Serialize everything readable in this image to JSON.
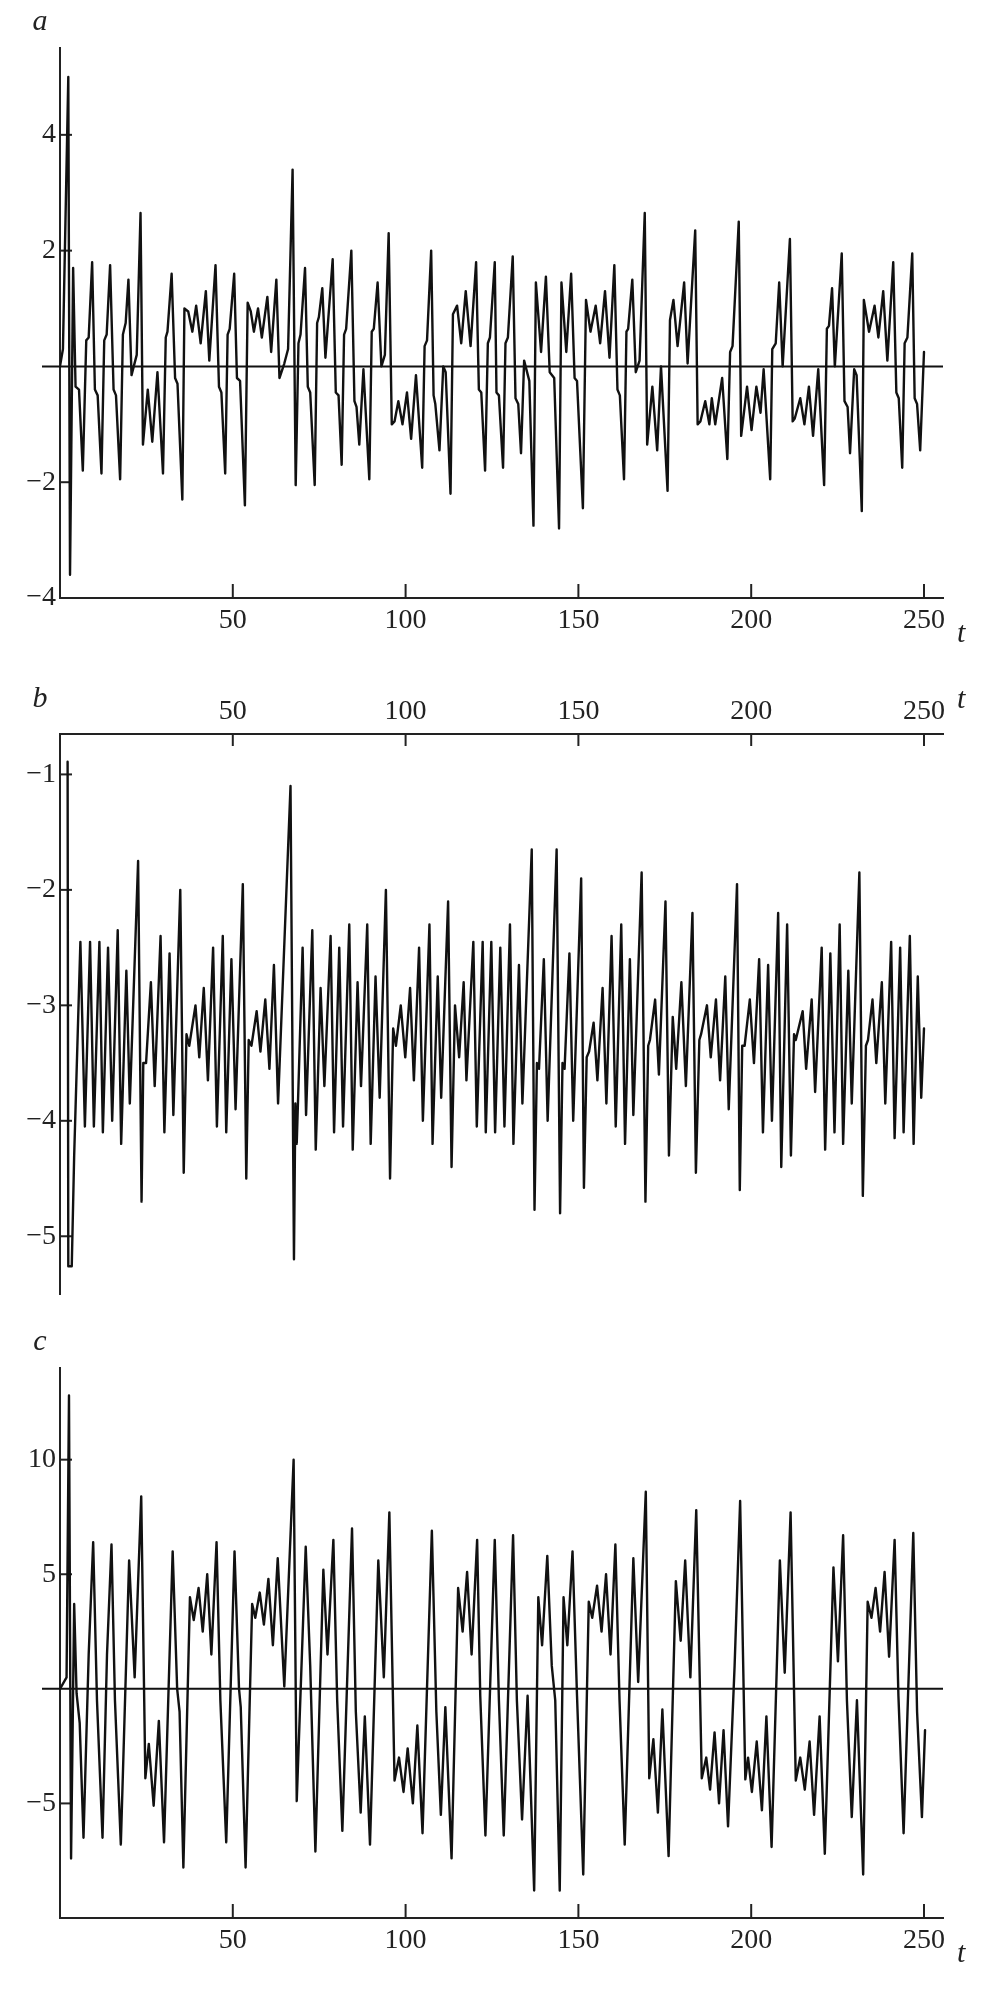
{
  "chart_data": [
    {
      "type": "line",
      "title": "a",
      "xlabel": "t",
      "color": "#111111",
      "xlim": [
        0,
        255.5
      ],
      "xticks": [
        50,
        100,
        150,
        200,
        250
      ],
      "ylim": [
        -4,
        5.5
      ],
      "yticks": [
        {
          "value": -4,
          "label": "−4"
        },
        {
          "value": -2,
          "label": "−2"
        },
        2,
        4
      ],
      "ref_lines": [
        {
          "axis": "y",
          "value": 0,
          "color": "#111111"
        }
      ],
      "x": [
        0,
        0.85,
        2.4,
        2.9,
        3.8,
        4.5,
        5.5,
        6.6,
        7.6,
        8.3,
        9.3,
        10.1,
        10.9,
        12.0,
        12.8,
        13.5,
        14.5,
        15.5,
        16.2,
        17.4,
        18.2,
        19.0,
        19.8,
        20.7,
        22.2,
        23.3,
        24.0,
        25.4,
        26.7,
        28.2,
        29.8,
        30.6,
        31.1,
        32.3,
        33.3,
        34.0,
        35.4,
        36.0,
        37.1,
        38.3,
        39.4,
        40.7,
        42.2,
        43.2,
        45.0,
        46.0,
        46.7,
        47.8,
        48.5,
        49.1,
        50.4,
        51.2,
        52.1,
        53.5,
        54.3,
        55.2,
        56.1,
        57.3,
        58.4,
        60.0,
        61.1,
        62.6,
        63.5,
        64.9,
        66.0,
        67.3,
        68.2,
        69.0,
        69.6,
        70.9,
        71.7,
        72.4,
        73.7,
        74.4,
        74.9,
        75.9,
        76.8,
        78.9,
        79.8,
        80.6,
        81.5,
        82.2,
        82.8,
        84.3,
        85.2,
        85.8,
        86.6,
        87.8,
        89.5,
        90.2,
        90.8,
        91.9,
        93.0,
        94.0,
        95.1,
        96.0,
        96.8,
        97.9,
        99.1,
        100.4,
        101.6,
        103.0,
        104.8,
        105.5,
        106.2,
        107.4,
        108.1,
        108.6,
        109.8,
        110.9,
        111.6,
        113.0,
        113.7,
        114.9,
        116.1,
        117.4,
        118.8,
        120.4,
        121.2,
        121.9,
        123.0,
        123.8,
        124.4,
        125.8,
        126.3,
        127.0,
        128.2,
        128.9,
        129.6,
        131.0,
        131.8,
        132.6,
        133.4,
        134.3,
        135.8,
        137.0,
        137.7,
        139.2,
        140.6,
        141.7,
        143.0,
        144.4,
        145.1,
        146.5,
        147.9,
        148.9,
        149.6,
        151.3,
        152.2,
        153.5,
        155.0,
        156.3,
        157.7,
        159.0,
        160.4,
        161.3,
        162.0,
        163.2,
        163.9,
        164.4,
        165.6,
        166.6,
        167.7,
        169.2,
        169.9,
        171.4,
        172.8,
        173.9,
        175.8,
        176.5,
        177.5,
        178.7,
        180.6,
        181.6,
        183.8,
        184.5,
        185.3,
        186.7,
        187.9,
        188.6,
        189.6,
        191.6,
        193.1,
        193.9,
        194.6,
        196.4,
        197.1,
        198.8,
        200.1,
        201.5,
        202.7,
        203.6,
        205.5,
        206.1,
        207.1,
        208.1,
        209.1,
        211.2,
        212.0,
        212.6,
        214.2,
        215.4,
        216.7,
        217.9,
        219.4,
        221.1,
        221.9,
        222.5,
        223.4,
        224.2,
        226.2,
        227.0,
        227.9,
        228.6,
        229.8,
        230.5,
        232.0,
        232.6,
        234.1,
        235.7,
        236.8,
        238.2,
        239.4,
        241.1,
        242.0,
        242.7,
        243.7,
        244.4,
        245.2,
        246.6,
        247.3,
        248.0,
        248.9,
        250.0
      ],
      "values": [
        0,
        0.3,
        5.0,
        -3.6,
        1.7,
        -0.35,
        -0.4,
        -1.8,
        0.45,
        0.5,
        1.8,
        -0.4,
        -0.5,
        -1.85,
        0.45,
        0.55,
        1.75,
        -0.4,
        -0.5,
        -1.95,
        0.55,
        0.75,
        1.5,
        -0.15,
        0.2,
        2.65,
        -1.35,
        -0.4,
        -1.3,
        -0.1,
        -1.85,
        0.5,
        0.6,
        1.6,
        -0.2,
        -0.3,
        -2.3,
        1.0,
        0.95,
        0.6,
        1.05,
        0.4,
        1.3,
        0.1,
        1.75,
        -0.35,
        -0.45,
        -1.85,
        0.55,
        0.65,
        1.6,
        -0.2,
        -0.25,
        -2.4,
        1.1,
        0.95,
        0.6,
        1.0,
        0.5,
        1.2,
        0.25,
        1.5,
        -0.2,
        0.05,
        0.3,
        3.4,
        -2.05,
        0.4,
        0.55,
        1.7,
        -0.35,
        -0.45,
        -2.05,
        0.75,
        0.85,
        1.35,
        0.15,
        1.85,
        -0.45,
        -0.5,
        -1.7,
        0.55,
        0.65,
        2.0,
        -0.6,
        -0.7,
        -1.35,
        -0.05,
        -1.95,
        0.6,
        0.65,
        1.45,
        0.0,
        0.2,
        2.3,
        -1.0,
        -0.95,
        -0.6,
        -1.0,
        -0.45,
        -1.25,
        -0.15,
        -1.75,
        0.35,
        0.45,
        2.0,
        -0.5,
        -0.65,
        -1.45,
        0.0,
        -0.1,
        -2.2,
        0.9,
        1.05,
        0.4,
        1.3,
        0.35,
        1.8,
        -0.4,
        -0.45,
        -1.8,
        0.4,
        0.5,
        1.8,
        -0.45,
        -0.5,
        -1.75,
        0.4,
        0.5,
        1.9,
        -0.55,
        -0.65,
        -1.5,
        0.1,
        -0.25,
        -2.75,
        1.45,
        0.25,
        1.55,
        -0.1,
        -0.2,
        -2.8,
        1.45,
        0.25,
        1.6,
        -0.2,
        -0.25,
        -2.45,
        1.15,
        0.6,
        1.05,
        0.4,
        1.3,
        0.15,
        1.75,
        -0.4,
        -0.5,
        -1.95,
        0.6,
        0.65,
        1.5,
        -0.1,
        0.1,
        2.65,
        -1.35,
        -0.35,
        -1.45,
        0.0,
        -2.15,
        0.8,
        1.15,
        0.35,
        1.45,
        0.05,
        2.35,
        -1.0,
        -0.95,
        -0.6,
        -1.0,
        -0.55,
        -1.0,
        -0.2,
        -1.6,
        0.25,
        0.35,
        2.5,
        -1.2,
        -0.35,
        -1.1,
        -0.35,
        -0.8,
        -0.05,
        -1.95,
        0.3,
        0.4,
        1.45,
        0.0,
        2.2,
        -0.95,
        -0.9,
        -0.55,
        -1.0,
        -0.35,
        -1.2,
        -0.05,
        -2.05,
        0.65,
        0.7,
        1.35,
        0.0,
        1.95,
        -0.6,
        -0.7,
        -1.5,
        -0.05,
        -0.15,
        -2.5,
        1.15,
        0.6,
        1.05,
        0.5,
        1.3,
        0.1,
        1.8,
        -0.45,
        -0.55,
        -1.75,
        0.4,
        0.5,
        1.95,
        -0.55,
        -0.65,
        -1.45,
        0.25
      ]
    },
    {
      "type": "line",
      "title": "b",
      "xlabel": "t",
      "color": "#111111",
      "xlim": [
        0,
        255.5
      ],
      "xticks": [
        50,
        100,
        150,
        200,
        250
      ],
      "ylim": [
        -5.5,
        -0.65
      ],
      "yticks": [
        {
          "value": -5,
          "label": "−5"
        },
        {
          "value": -4,
          "label": "−4"
        },
        {
          "value": -3,
          "label": "−3"
        },
        {
          "value": -2,
          "label": "−2"
        },
        {
          "value": -1,
          "label": "−1"
        }
      ],
      "x": [
        2.2,
        2.4,
        3.4,
        4.1,
        5.9,
        7.2,
        8.7,
        9.8,
        11.4,
        12.4,
        13.9,
        15.1,
        16.7,
        17.7,
        19.2,
        20.2,
        22.6,
        23.6,
        24.1,
        24.9,
        26.3,
        27.4,
        29.1,
        30.2,
        31.7,
        32.8,
        34.8,
        35.8,
        36.6,
        37.4,
        39.2,
        40.3,
        41.6,
        42.8,
        44.3,
        45.4,
        47.1,
        48.1,
        49.6,
        50.8,
        52.9,
        53.9,
        54.6,
        55.4,
        56.9,
        58.0,
        59.4,
        60.6,
        61.9,
        63.1,
        66.7,
        67.7,
        68.1,
        68.5,
        70.2,
        71.2,
        73.0,
        74.0,
        75.4,
        76.5,
        78.3,
        79.3,
        80.8,
        81.9,
        83.7,
        84.7,
        86.1,
        87.1,
        88.9,
        89.9,
        91.3,
        92.5,
        94.3,
        95.5,
        96.4,
        97.2,
        98.6,
        99.9,
        101.3,
        102.4,
        103.9,
        105.0,
        106.9,
        107.8,
        109.3,
        110.3,
        112.3,
        113.3,
        114.3,
        115.5,
        116.8,
        117.6,
        119.6,
        120.6,
        122.3,
        123.2,
        124.8,
        125.9,
        127.4,
        128.6,
        130.2,
        131.2,
        132.8,
        133.8,
        136.5,
        137.3,
        138.0,
        138.6,
        140.0,
        141.1,
        143.7,
        144.7,
        145.4,
        146.0,
        147.4,
        148.5,
        150.8,
        151.6,
        152.4,
        153.1,
        154.4,
        155.5,
        157.0,
        158.1,
        159.6,
        160.8,
        162.4,
        163.5,
        164.9,
        165.9,
        168.3,
        169.4,
        170.2,
        170.7,
        172.2,
        173.3,
        175.2,
        176.2,
        177.3,
        178.3,
        179.8,
        181.1,
        183.0,
        184.0,
        185.0,
        185.5,
        187.2,
        188.3,
        189.8,
        191.0,
        192.5,
        193.5,
        195.9,
        196.7,
        197.4,
        198.1,
        199.6,
        200.8,
        202.3,
        203.4,
        204.9,
        206.0,
        207.8,
        208.7,
        210.4,
        211.5,
        212.4,
        212.9,
        214.9,
        215.9,
        217.5,
        218.5,
        220.4,
        221.4,
        222.9,
        224.1,
        225.6,
        226.6,
        228.1,
        229.1,
        231.3,
        232.3,
        233.2,
        233.8,
        235.1,
        236.2,
        237.8,
        238.8,
        240.5,
        241.5,
        243.1,
        244.1,
        245.9,
        247.0,
        248.2,
        249.2,
        250.0
      ],
      "values": [
        -0.89,
        -5.26,
        -5.26,
        -4.3,
        -2.45,
        -4.05,
        -2.45,
        -4.05,
        -2.45,
        -4.1,
        -2.5,
        -4.0,
        -2.35,
        -4.2,
        -2.7,
        -3.85,
        -1.75,
        -4.7,
        -3.5,
        -3.5,
        -2.8,
        -3.7,
        -2.4,
        -4.1,
        -2.55,
        -3.95,
        -2.0,
        -4.45,
        -3.25,
        -3.35,
        -3.0,
        -3.45,
        -2.85,
        -3.65,
        -2.5,
        -4.05,
        -2.4,
        -4.1,
        -2.6,
        -3.9,
        -1.95,
        -4.5,
        -3.3,
        -3.35,
        -3.05,
        -3.4,
        -2.95,
        -3.55,
        -2.65,
        -3.85,
        -1.1,
        -5.2,
        -3.85,
        -4.2,
        -2.5,
        -3.95,
        -2.35,
        -4.25,
        -2.85,
        -3.7,
        -2.4,
        -4.1,
        -2.5,
        -4.05,
        -2.3,
        -4.25,
        -2.8,
        -3.7,
        -2.3,
        -4.2,
        -2.75,
        -3.8,
        -2.0,
        -4.5,
        -3.2,
        -3.35,
        -3.0,
        -3.45,
        -2.85,
        -3.65,
        -2.5,
        -4.0,
        -2.3,
        -4.2,
        -2.75,
        -3.8,
        -2.1,
        -4.4,
        -3.0,
        -3.45,
        -2.8,
        -3.65,
        -2.45,
        -4.05,
        -2.45,
        -4.1,
        -2.45,
        -4.1,
        -2.5,
        -4.05,
        -2.3,
        -4.2,
        -2.65,
        -3.85,
        -1.65,
        -4.77,
        -3.5,
        -3.55,
        -2.6,
        -4.0,
        -1.65,
        -4.8,
        -3.5,
        -3.55,
        -2.55,
        -4.0,
        -1.9,
        -4.58,
        -3.45,
        -3.4,
        -3.15,
        -3.65,
        -2.85,
        -3.85,
        -2.4,
        -4.05,
        -2.3,
        -4.2,
        -2.6,
        -3.95,
        -1.85,
        -4.7,
        -3.35,
        -3.3,
        -2.95,
        -3.6,
        -2.1,
        -4.3,
        -3.1,
        -3.55,
        -2.8,
        -3.7,
        -2.2,
        -4.45,
        -3.3,
        -3.25,
        -3.0,
        -3.45,
        -2.95,
        -3.65,
        -2.75,
        -3.9,
        -1.95,
        -4.6,
        -3.35,
        -3.35,
        -2.95,
        -3.5,
        -2.6,
        -4.1,
        -2.65,
        -4.0,
        -2.2,
        -4.4,
        -2.3,
        -4.3,
        -3.25,
        -3.3,
        -3.05,
        -3.55,
        -2.95,
        -3.75,
        -2.5,
        -4.25,
        -2.55,
        -4.1,
        -2.3,
        -4.2,
        -2.7,
        -3.85,
        -1.85,
        -4.65,
        -3.35,
        -3.3,
        -2.95,
        -3.5,
        -2.8,
        -3.85,
        -2.45,
        -4.15,
        -2.5,
        -4.1,
        -2.4,
        -4.2,
        -2.75,
        -3.8,
        -3.2
      ]
    },
    {
      "type": "line",
      "title": "c",
      "xlabel": "t",
      "color": "#111111",
      "xlim": [
        0,
        255.5
      ],
      "xticks": [
        50,
        100,
        150,
        200,
        250
      ],
      "ylim": [
        -10,
        14
      ],
      "yticks": [
        {
          "value": -5,
          "label": "−5"
        },
        5,
        10
      ],
      "ref_lines": [
        {
          "axis": "y",
          "value": 0,
          "color": "#111111"
        }
      ],
      "x": [
        0,
        1.9,
        2.6,
        3.2,
        4.1,
        4.8,
        5.7,
        6.8,
        8.3,
        9.6,
        10.7,
        12.3,
        13.6,
        14.9,
        15.9,
        17.6,
        20.0,
        21.6,
        23.5,
        24.7,
        25.7,
        27.1,
        28.6,
        30.1,
        32.6,
        33.9,
        34.6,
        35.7,
        37.6,
        38.7,
        40.1,
        41.3,
        42.6,
        43.8,
        45.3,
        46.4,
        48.1,
        50.5,
        51.8,
        52.3,
        53.7,
        55.6,
        56.5,
        57.8,
        59.0,
        60.3,
        61.6,
        63.0,
        64.9,
        67.6,
        68.5,
        71.1,
        72.4,
        73.9,
        76.2,
        77.4,
        79.1,
        80.2,
        81.7,
        84.5,
        85.6,
        87.0,
        88.2,
        89.7,
        92.1,
        93.7,
        95.3,
        96.8,
        98.1,
        99.4,
        100.6,
        102.1,
        103.4,
        104.9,
        107.6,
        108.9,
        110.2,
        111.5,
        113.3,
        115.2,
        116.5,
        117.8,
        119.1,
        120.7,
        121.6,
        123.1,
        125.8,
        127.0,
        128.4,
        131.1,
        132.2,
        133.7,
        135.3,
        137.2,
        138.4,
        139.5,
        141.0,
        142.3,
        143.3,
        144.6,
        145.7,
        146.8,
        148.3,
        149.6,
        151.4,
        153.0,
        154.0,
        155.4,
        156.7,
        158.0,
        159.3,
        160.7,
        161.9,
        163.4,
        165.9,
        167.3,
        169.5,
        170.5,
        171.7,
        173.0,
        174.3,
        176.1,
        178.2,
        179.6,
        180.9,
        182.4,
        184.1,
        185.7,
        187.0,
        188.1,
        189.4,
        190.7,
        192.0,
        193.3,
        195.2,
        196.8,
        198.3,
        199.1,
        200.2,
        201.6,
        203.1,
        204.4,
        205.9,
        208.3,
        209.7,
        211.4,
        212.9,
        214.2,
        215.5,
        216.9,
        218.2,
        219.8,
        221.3,
        223.8,
        225.1,
        226.6,
        227.7,
        229.1,
        230.6,
        232.4,
        233.7,
        234.8,
        236.0,
        237.3,
        238.6,
        239.9,
        241.5,
        242.6,
        244.1,
        246.9,
        248.0,
        249.4,
        250.3
      ],
      "values": [
        0,
        0.5,
        12.8,
        -7.4,
        3.7,
        -0.2,
        -1.5,
        -6.5,
        1.5,
        6.4,
        -0.5,
        -6.5,
        1.5,
        6.3,
        -0.5,
        -6.8,
        5.6,
        0.5,
        8.4,
        -3.9,
        -2.4,
        -5.1,
        -1.4,
        -6.7,
        6.0,
        0.0,
        -1.0,
        -7.8,
        4.0,
        3.0,
        4.4,
        2.5,
        5.0,
        1.5,
        6.4,
        -0.5,
        -6.7,
        6.0,
        0.0,
        -0.8,
        -7.8,
        3.7,
        3.1,
        4.2,
        2.8,
        4.8,
        1.9,
        5.7,
        0.1,
        10.0,
        -4.9,
        6.2,
        1.0,
        -7.1,
        5.2,
        1.5,
        6.5,
        -0.5,
        -6.2,
        7.0,
        -1.0,
        -5.4,
        -1.2,
        -6.8,
        5.6,
        0.5,
        7.7,
        -4.0,
        -3.0,
        -4.5,
        -2.6,
        -5.0,
        -1.6,
        -6.3,
        6.9,
        -1.0,
        -5.5,
        -0.8,
        -7.4,
        4.4,
        2.5,
        5.1,
        1.5,
        6.5,
        -0.3,
        -6.4,
        6.5,
        -0.5,
        -6.4,
        6.7,
        -0.5,
        -5.7,
        -0.3,
        -8.8,
        4.0,
        1.9,
        5.8,
        1.0,
        -0.5,
        -8.8,
        4.0,
        1.9,
        6.0,
        -0.3,
        -8.1,
        3.8,
        3.1,
        4.5,
        2.5,
        5.0,
        1.5,
        6.3,
        -0.5,
        -6.8,
        5.7,
        0.3,
        8.6,
        -3.9,
        -2.2,
        -5.4,
        -0.9,
        -7.3,
        4.7,
        2.1,
        5.6,
        0.5,
        7.8,
        -3.9,
        -3.0,
        -4.4,
        -1.9,
        -5.0,
        -1.8,
        -6.0,
        1.0,
        8.2,
        -3.95,
        -3.0,
        -4.5,
        -2.3,
        -5.3,
        -1.2,
        -6.9,
        5.6,
        0.7,
        7.7,
        -4.0,
        -3.0,
        -4.4,
        -2.3,
        -5.5,
        -1.2,
        -7.2,
        5.3,
        1.2,
        6.7,
        -0.5,
        -5.6,
        -0.5,
        -8.1,
        3.8,
        3.1,
        4.4,
        2.5,
        5.1,
        1.4,
        6.5,
        -0.3,
        -6.3,
        6.8,
        -1.0,
        -5.6,
        -1.8
      ]
    }
  ]
}
